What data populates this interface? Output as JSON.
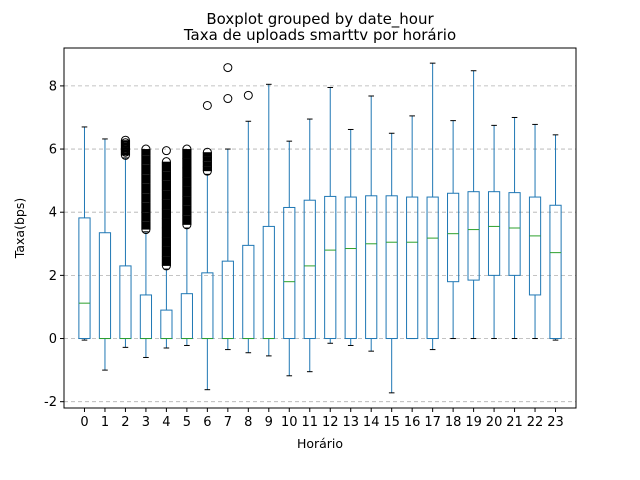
{
  "chart_data": {
    "type": "boxplot",
    "suptitle": "Boxplot grouped by date_hour",
    "title": "Taxa de uploads smarttv por horário",
    "xlabel": "Horário",
    "ylabel": "Taxa(bps)",
    "ylim": [
      -2.2,
      9.2
    ],
    "yticks": [
      -2,
      0,
      2,
      4,
      6,
      8
    ],
    "grid": "horizontal dashed",
    "colors": {
      "box": "#1f77b4",
      "median": "#2ca02c",
      "grid": "#b0b0b0"
    },
    "categories": [
      "0",
      "1",
      "2",
      "3",
      "4",
      "5",
      "6",
      "7",
      "8",
      "9",
      "10",
      "11",
      "12",
      "13",
      "14",
      "15",
      "16",
      "17",
      "18",
      "19",
      "20",
      "21",
      "22",
      "23"
    ],
    "boxes": [
      {
        "whislo": -0.05,
        "q1": 0.0,
        "med": 1.12,
        "q3": 3.82,
        "whishi": 6.7,
        "fliers": []
      },
      {
        "whislo": -1.0,
        "q1": 0.0,
        "med": 0.0,
        "q3": 3.35,
        "whishi": 6.32,
        "fliers": []
      },
      {
        "whislo": -0.28,
        "q1": 0.0,
        "med": 0.0,
        "q3": 2.3,
        "whishi": 5.72,
        "fliers": [
          5.8,
          5.9,
          6.0,
          6.05,
          6.1,
          6.2,
          6.28
        ]
      },
      {
        "whislo": -0.6,
        "q1": 0.0,
        "med": 0.0,
        "q3": 1.38,
        "whishi": 3.38,
        "fliers": [
          3.45,
          3.7,
          4.0,
          4.3,
          4.6,
          4.9,
          5.2,
          5.5,
          5.8,
          6.0
        ]
      },
      {
        "whislo": -0.3,
        "q1": 0.0,
        "med": 0.0,
        "q3": 0.9,
        "whishi": 2.2,
        "fliers": [
          2.3,
          2.6,
          2.9,
          3.2,
          3.5,
          3.8,
          4.1,
          4.4,
          4.7,
          5.0,
          5.3,
          5.6,
          5.95
        ]
      },
      {
        "whislo": -0.22,
        "q1": 0.0,
        "med": 0.0,
        "q3": 1.42,
        "whishi": 3.5,
        "fliers": [
          3.6,
          3.9,
          4.2,
          4.5,
          4.8,
          5.1,
          5.4,
          5.7,
          6.0
        ]
      },
      {
        "whislo": -1.62,
        "q1": 0.0,
        "med": 0.0,
        "q3": 2.08,
        "whishi": 5.2,
        "fliers": [
          5.3,
          5.45,
          5.6,
          5.75,
          5.9,
          7.38
        ]
      },
      {
        "whislo": -0.35,
        "q1": 0.0,
        "med": 0.0,
        "q3": 2.45,
        "whishi": 6.0,
        "fliers": [
          7.6,
          8.58
        ]
      },
      {
        "whislo": -0.45,
        "q1": 0.0,
        "med": 0.0,
        "q3": 2.95,
        "whishi": 6.88,
        "fliers": [
          7.7
        ]
      },
      {
        "whislo": -0.55,
        "q1": 0.0,
        "med": 0.0,
        "q3": 3.55,
        "whishi": 8.05,
        "fliers": []
      },
      {
        "whislo": -1.18,
        "q1": 0.0,
        "med": 1.8,
        "q3": 4.15,
        "whishi": 6.25,
        "fliers": []
      },
      {
        "whislo": -1.05,
        "q1": 0.0,
        "med": 2.3,
        "q3": 4.38,
        "whishi": 6.95,
        "fliers": []
      },
      {
        "whislo": -0.15,
        "q1": 0.0,
        "med": 2.8,
        "q3": 4.5,
        "whishi": 7.95,
        "fliers": []
      },
      {
        "whislo": -0.22,
        "q1": 0.0,
        "med": 2.85,
        "q3": 4.48,
        "whishi": 6.62,
        "fliers": []
      },
      {
        "whislo": -0.4,
        "q1": 0.0,
        "med": 3.0,
        "q3": 4.52,
        "whishi": 7.68,
        "fliers": []
      },
      {
        "whislo": -1.72,
        "q1": 0.0,
        "med": 3.05,
        "q3": 4.52,
        "whishi": 6.5,
        "fliers": []
      },
      {
        "whislo": 0.0,
        "q1": 0.0,
        "med": 3.05,
        "q3": 4.48,
        "whishi": 7.05,
        "fliers": []
      },
      {
        "whislo": -0.35,
        "q1": 0.0,
        "med": 3.18,
        "q3": 4.48,
        "whishi": 8.72,
        "fliers": []
      },
      {
        "whislo": 0.0,
        "q1": 1.8,
        "med": 3.32,
        "q3": 4.6,
        "whishi": 6.9,
        "fliers": []
      },
      {
        "whislo": 0.0,
        "q1": 1.85,
        "med": 3.45,
        "q3": 4.65,
        "whishi": 8.48,
        "fliers": []
      },
      {
        "whislo": 0.0,
        "q1": 2.0,
        "med": 3.55,
        "q3": 4.65,
        "whishi": 6.75,
        "fliers": []
      },
      {
        "whislo": 0.0,
        "q1": 2.0,
        "med": 3.5,
        "q3": 4.62,
        "whishi": 7.0,
        "fliers": []
      },
      {
        "whislo": 0.0,
        "q1": 1.38,
        "med": 3.25,
        "q3": 4.48,
        "whishi": 6.78,
        "fliers": []
      },
      {
        "whislo": -0.05,
        "q1": 0.0,
        "med": 2.72,
        "q3": 4.22,
        "whishi": 6.45,
        "fliers": []
      }
    ]
  }
}
